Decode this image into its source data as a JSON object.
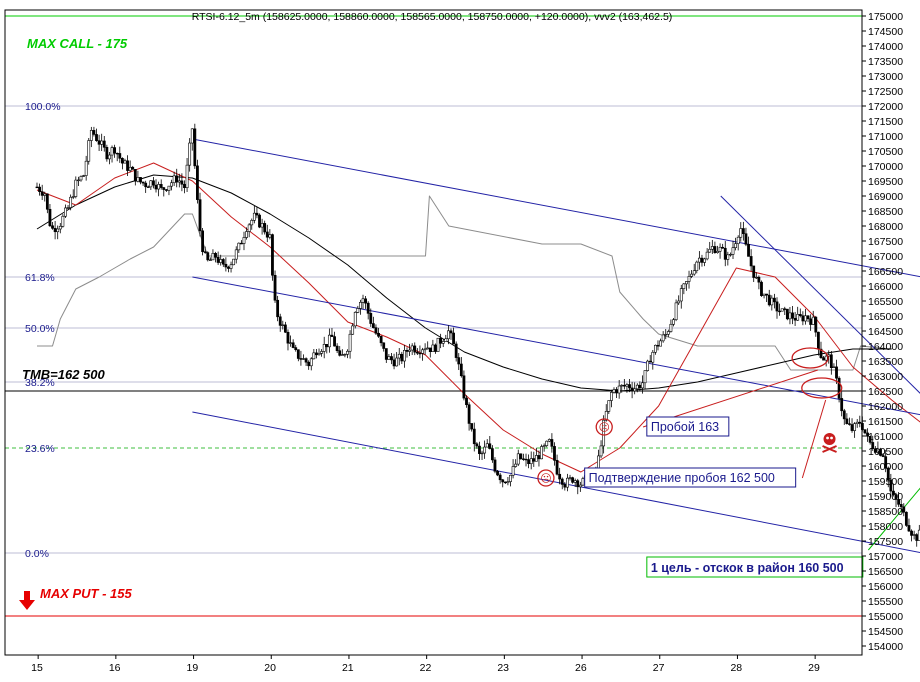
{
  "chart_data": {
    "type": "candlestick",
    "title": "RTSI-6.12_5m (158625.0000, 158860.0000, 158565.0000, 158750.0000, +120.0000), vvv2 (163,462.5)",
    "x_labels": [
      "15",
      "16",
      "19",
      "20",
      "21",
      "22",
      "23",
      "26",
      "27",
      "28",
      "29"
    ],
    "y_ticks": [
      154000,
      154500,
      155000,
      155500,
      156000,
      156500,
      157000,
      157500,
      158000,
      158500,
      159000,
      159500,
      160000,
      160500,
      161000,
      161500,
      162000,
      162500,
      163000,
      163500,
      164000,
      164500,
      165000,
      165500,
      166000,
      166500,
      167000,
      167500,
      168000,
      168500,
      169000,
      169500,
      170000,
      170500,
      171000,
      171500,
      172000,
      172500,
      173000,
      173500,
      174000,
      174500,
      175000
    ],
    "ylim": [
      153700,
      175200
    ],
    "fib_levels": [
      {
        "label": "100.0%",
        "value": 172000
      },
      {
        "label": "61.8%",
        "value": 166300
      },
      {
        "label": "50.0%",
        "value": 164600
      },
      {
        "label": "38.2%",
        "value": 162800
      },
      {
        "label": "23.6%",
        "value": 160600
      },
      {
        "label": "0.0%",
        "value": 157100
      }
    ],
    "levels": [
      {
        "label": "MAX CALL - 175",
        "value": 175000,
        "color": "#00cc00"
      },
      {
        "label": "TMB=162 500",
        "value": 162500,
        "color": "#000000"
      },
      {
        "label": "MAX PUT - 155",
        "value": 155000,
        "color": "#e60000"
      }
    ],
    "close_path": [
      [
        0,
        169300
      ],
      [
        0.1,
        169100
      ],
      [
        0.15,
        168200
      ],
      [
        0.2,
        167900
      ],
      [
        0.3,
        168100
      ],
      [
        0.4,
        168600
      ],
      [
        0.5,
        169400
      ],
      [
        0.6,
        169700
      ],
      [
        0.7,
        171200
      ],
      [
        0.8,
        170800
      ],
      [
        0.9,
        170400
      ],
      [
        1.0,
        170600
      ],
      [
        1.1,
        170100
      ],
      [
        1.2,
        169900
      ],
      [
        1.3,
        169500
      ],
      [
        1.4,
        169400
      ],
      [
        1.5,
        169500
      ],
      [
        1.6,
        169200
      ],
      [
        1.7,
        169400
      ],
      [
        1.8,
        169600
      ],
      [
        1.9,
        169300
      ],
      [
        2.0,
        171300
      ],
      [
        2.05,
        169200
      ],
      [
        2.1,
        167800
      ],
      [
        2.15,
        167000
      ],
      [
        2.2,
        166800
      ],
      [
        2.3,
        167000
      ],
      [
        2.4,
        166600
      ],
      [
        2.5,
        166800
      ],
      [
        2.6,
        167300
      ],
      [
        2.7,
        168000
      ],
      [
        2.8,
        168300
      ],
      [
        2.9,
        168000
      ],
      [
        3.0,
        167600
      ],
      [
        3.05,
        165500
      ],
      [
        3.1,
        165000
      ],
      [
        3.2,
        164400
      ],
      [
        3.3,
        163800
      ],
      [
        3.4,
        163600
      ],
      [
        3.5,
        163400
      ],
      [
        3.6,
        163900
      ],
      [
        3.7,
        164000
      ],
      [
        3.8,
        164300
      ],
      [
        3.9,
        163500
      ],
      [
        4.0,
        164000
      ],
      [
        4.1,
        165300
      ],
      [
        4.2,
        165600
      ],
      [
        4.3,
        164800
      ],
      [
        4.4,
        164200
      ],
      [
        4.5,
        163600
      ],
      [
        4.6,
        163500
      ],
      [
        4.7,
        163600
      ],
      [
        4.8,
        164000
      ],
      [
        4.9,
        163900
      ],
      [
        5.0,
        164000
      ],
      [
        5.1,
        163900
      ],
      [
        5.2,
        164200
      ],
      [
        5.3,
        164500
      ],
      [
        5.4,
        163700
      ],
      [
        5.5,
        162300
      ],
      [
        5.6,
        161000
      ],
      [
        5.7,
        160300
      ],
      [
        5.8,
        160700
      ],
      [
        5.9,
        159900
      ],
      [
        6.0,
        159500
      ],
      [
        6.1,
        159700
      ],
      [
        6.2,
        160300
      ],
      [
        6.3,
        160100
      ],
      [
        6.4,
        160200
      ],
      [
        6.5,
        160500
      ],
      [
        6.6,
        160800
      ],
      [
        6.7,
        159800
      ],
      [
        6.8,
        159400
      ],
      [
        6.9,
        159600
      ],
      [
        7.0,
        159400
      ],
      [
        7.1,
        159600
      ],
      [
        7.2,
        159800
      ],
      [
        7.3,
        161500
      ],
      [
        7.4,
        162500
      ],
      [
        7.5,
        162600
      ],
      [
        7.6,
        162700
      ],
      [
        7.7,
        162600
      ],
      [
        7.8,
        162800
      ],
      [
        7.9,
        163700
      ],
      [
        8.0,
        164100
      ],
      [
        8.1,
        164400
      ],
      [
        8.2,
        165100
      ],
      [
        8.3,
        165800
      ],
      [
        8.4,
        166300
      ],
      [
        8.5,
        166900
      ],
      [
        8.6,
        167000
      ],
      [
        8.7,
        167300
      ],
      [
        8.8,
        167200
      ],
      [
        8.9,
        166900
      ],
      [
        9.0,
        167600
      ],
      [
        9.05,
        168000
      ],
      [
        9.1,
        167500
      ],
      [
        9.2,
        166600
      ],
      [
        9.3,
        165900
      ],
      [
        9.4,
        165600
      ],
      [
        9.5,
        165300
      ],
      [
        9.6,
        165100
      ],
      [
        9.7,
        165000
      ],
      [
        9.8,
        164900
      ],
      [
        9.9,
        165000
      ],
      [
        10.0,
        164800
      ],
      [
        10.05,
        164100
      ],
      [
        10.1,
        163600
      ],
      [
        10.2,
        163600
      ],
      [
        10.25,
        163200
      ],
      [
        10.3,
        162700
      ],
      [
        10.35,
        162000
      ],
      [
        10.4,
        161400
      ],
      [
        10.5,
        161200
      ],
      [
        10.6,
        161500
      ],
      [
        10.7,
        160800
      ],
      [
        10.8,
        160600
      ],
      [
        10.9,
        160400
      ],
      [
        10.95,
        159600
      ],
      [
        11.0,
        159000
      ],
      [
        11.1,
        158700
      ],
      [
        11.2,
        158100
      ],
      [
        11.3,
        157600
      ],
      [
        11.4,
        157800
      ],
      [
        11.5,
        158300
      ],
      [
        11.6,
        158600
      ],
      [
        11.65,
        158750
      ]
    ],
    "ma_red": [
      [
        0,
        169200
      ],
      [
        0.5,
        168700
      ],
      [
        1.0,
        169600
      ],
      [
        1.5,
        170100
      ],
      [
        2.0,
        169500
      ],
      [
        2.5,
        168300
      ],
      [
        3.0,
        167300
      ],
      [
        3.5,
        166100
      ],
      [
        4.0,
        164800
      ],
      [
        4.5,
        164300
      ],
      [
        5.0,
        163700
      ],
      [
        5.5,
        162400
      ],
      [
        6.0,
        161200
      ],
      [
        6.5,
        160400
      ],
      [
        7.0,
        159800
      ],
      [
        7.5,
        160600
      ],
      [
        8.0,
        162000
      ],
      [
        8.5,
        164300
      ],
      [
        9.0,
        166600
      ],
      [
        9.5,
        166300
      ],
      [
        10.0,
        165000
      ],
      [
        10.5,
        163300
      ],
      [
        11.0,
        162200
      ],
      [
        11.5,
        161200
      ],
      [
        12.0,
        160200
      ]
    ],
    "ma_black": [
      [
        0,
        167900
      ],
      [
        0.5,
        168700
      ],
      [
        1.0,
        169300
      ],
      [
        1.5,
        169700
      ],
      [
        2.0,
        169600
      ],
      [
        2.5,
        169100
      ],
      [
        3.0,
        168400
      ],
      [
        3.5,
        167600
      ],
      [
        4.0,
        166700
      ],
      [
        4.5,
        165600
      ],
      [
        5.0,
        164600
      ],
      [
        5.5,
        163800
      ],
      [
        6.0,
        163300
      ],
      [
        6.5,
        162900
      ],
      [
        7.0,
        162600
      ],
      [
        7.5,
        162500
      ],
      [
        8.0,
        162600
      ],
      [
        8.5,
        162800
      ],
      [
        9.0,
        163100
      ],
      [
        9.5,
        163400
      ],
      [
        10.0,
        163700
      ],
      [
        10.5,
        163900
      ],
      [
        11.0,
        163900
      ]
    ],
    "indicator_gray": [
      [
        0,
        164000
      ],
      [
        0.2,
        164000
      ],
      [
        0.3,
        164900
      ],
      [
        0.5,
        165900
      ],
      [
        0.8,
        166300
      ],
      [
        1.0,
        166600
      ],
      [
        1.2,
        166900
      ],
      [
        1.5,
        167300
      ],
      [
        1.9,
        168400
      ],
      [
        2.0,
        168400
      ],
      [
        2.2,
        167000
      ],
      [
        2.6,
        167000
      ],
      [
        3.0,
        167000
      ],
      [
        5.0,
        167000
      ],
      [
        5.05,
        169000
      ],
      [
        5.3,
        168000
      ],
      [
        6.5,
        167400
      ],
      [
        7.0,
        167400
      ],
      [
        7.4,
        167000
      ],
      [
        7.5,
        165800
      ],
      [
        7.8,
        164900
      ],
      [
        8.0,
        164400
      ],
      [
        8.5,
        164000
      ],
      [
        9.0,
        164000
      ],
      [
        9.5,
        164000
      ],
      [
        9.7,
        163200
      ],
      [
        10.5,
        163200
      ],
      [
        10.6,
        164000
      ],
      [
        11.0,
        163900
      ]
    ],
    "trendlines": [
      {
        "name": "channel-upper-top",
        "color": "#2323a6",
        "pts": [
          [
            2.0,
            170900
          ],
          [
            12.0,
            166000
          ]
        ]
      },
      {
        "name": "channel-upper-bottom",
        "color": "#2323a6",
        "pts": [
          [
            2.0,
            166300
          ],
          [
            12.0,
            161400
          ]
        ]
      },
      {
        "name": "channel-lower",
        "color": "#2323a6",
        "pts": [
          [
            2.0,
            161800
          ],
          [
            12.0,
            156800
          ]
        ]
      },
      {
        "name": "descending-steep",
        "color": "#2323a6",
        "pts": [
          [
            8.8,
            169000
          ],
          [
            12.0,
            160800
          ]
        ]
      },
      {
        "name": "target-line",
        "color": "#00bb00",
        "pts": [
          [
            10.7,
            157200
          ],
          [
            11.8,
            160600
          ]
        ]
      },
      {
        "name": "callout-163",
        "color": "#c81e1e",
        "pts": [
          [
            7.8,
            161300
          ],
          [
            10.05,
            163200
          ]
        ]
      },
      {
        "name": "callout-162500",
        "color": "#c81e1e",
        "pts": [
          [
            9.85,
            159600
          ],
          [
            10.15,
            162200
          ]
        ]
      }
    ],
    "annotations": [
      {
        "label": "Пробой 163",
        "x": 7.9,
        "value": 161300
      },
      {
        "label": "Подтверждение пробоя 162 500",
        "x": 7.1,
        "value": 159600
      },
      {
        "label": "1 цель - отскок в район 160 500",
        "x": 7.9,
        "value": 156600
      }
    ],
    "colors": {
      "candles": "#000000",
      "ma_red": "#c81e1e",
      "ma_black": "#000000",
      "indicator": "#8c8c8c",
      "channel": "#2323a6",
      "target": "#00bb00",
      "max_call": "#00cc00",
      "max_put": "#e60000"
    }
  }
}
